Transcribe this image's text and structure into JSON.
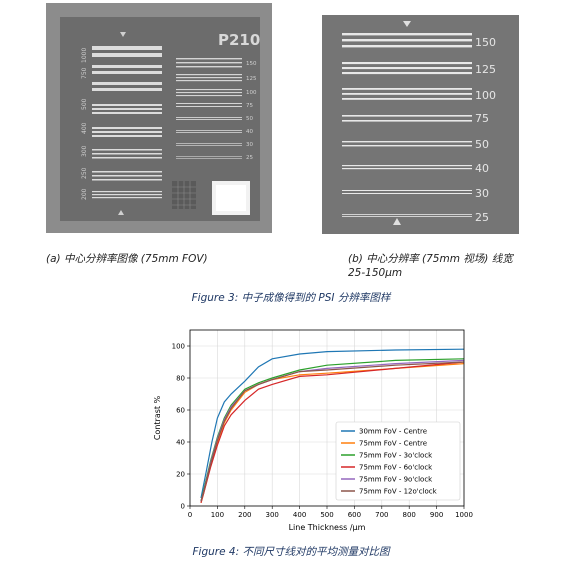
{
  "images": {
    "a": {
      "board_label": "P210",
      "left_labels": [
        "1000",
        "750",
        "500",
        "400",
        "300",
        "250",
        "200"
      ],
      "right_labels": [
        "150",
        "125",
        "100",
        "75",
        "50",
        "40",
        "30",
        "25"
      ],
      "caption": "(a) 中心分辨率图像 (75mm FOV)"
    },
    "b": {
      "labels": [
        "150",
        "125",
        "100",
        "75",
        "50",
        "40",
        "30",
        "25"
      ],
      "caption_line1": "(b) 中心分辨率 (75mm 视场) 线宽",
      "caption_line2": "25-150µm"
    }
  },
  "figure3_caption": "Figure 3: 中子成像得到的 PSI 分辨率图样",
  "figure4_caption": "Figure 4: 不同尺寸线对的平均测量对比图",
  "chart_data": {
    "type": "line",
    "xlabel": "Line Thickness /µm",
    "ylabel": "Contrast %",
    "xlim": [
      0,
      1000
    ],
    "ylim": [
      0,
      110
    ],
    "xticks": [
      0,
      100,
      200,
      300,
      400,
      500,
      600,
      700,
      800,
      900,
      1000
    ],
    "yticks": [
      0,
      20,
      40,
      60,
      80,
      100
    ],
    "grid": true,
    "legend_position": "lower-right",
    "series": [
      {
        "name": "30mm FoV - Centre",
        "color": "#1f77b4",
        "x": [
          40,
          60,
          80,
          100,
          125,
          150,
          200,
          250,
          300,
          400,
          500,
          750,
          1000
        ],
        "y": [
          5,
          22,
          40,
          55,
          65,
          70,
          78,
          87,
          92,
          95,
          96.5,
          97.5,
          98
        ]
      },
      {
        "name": "75mm FoV - Centre",
        "color": "#ff7f0e",
        "x": [
          40,
          50,
          75,
          100,
          125,
          150,
          200,
          250,
          300,
          400,
          500,
          750,
          1000
        ],
        "y": [
          2,
          8,
          25,
          40,
          52,
          60,
          71,
          76,
          79,
          82,
          83,
          86,
          89
        ]
      },
      {
        "name": "75mm FoV - 3o'clock",
        "color": "#2ca02c",
        "x": [
          40,
          50,
          75,
          100,
          125,
          150,
          200,
          250,
          300,
          400,
          500,
          750,
          1000
        ],
        "y": [
          3,
          10,
          28,
          43,
          55,
          63,
          73,
          77,
          80,
          85,
          88,
          91,
          92
        ]
      },
      {
        "name": "75mm FoV - 6o'clock",
        "color": "#d62728",
        "x": [
          40,
          50,
          75,
          100,
          125,
          150,
          200,
          250,
          300,
          400,
          500,
          750,
          1000
        ],
        "y": [
          2,
          8,
          24,
          38,
          50,
          57,
          66,
          73,
          76,
          81,
          82,
          86,
          90
        ]
      },
      {
        "name": "75mm FoV - 9o'clock",
        "color": "#9467bd",
        "x": [
          40,
          50,
          75,
          100,
          125,
          150,
          200,
          250,
          300,
          400,
          500,
          750,
          1000
        ],
        "y": [
          3,
          9,
          27,
          42,
          54,
          62,
          72,
          76,
          79,
          84,
          86,
          89,
          91
        ]
      },
      {
        "name": "75mm FoV - 12o'clock",
        "color": "#8c564b",
        "x": [
          40,
          50,
          75,
          100,
          125,
          150,
          200,
          250,
          300,
          400,
          500,
          750,
          1000
        ],
        "y": [
          3,
          9,
          26,
          41,
          53,
          61,
          72,
          76,
          79,
          84,
          85,
          88,
          90
        ]
      }
    ]
  }
}
